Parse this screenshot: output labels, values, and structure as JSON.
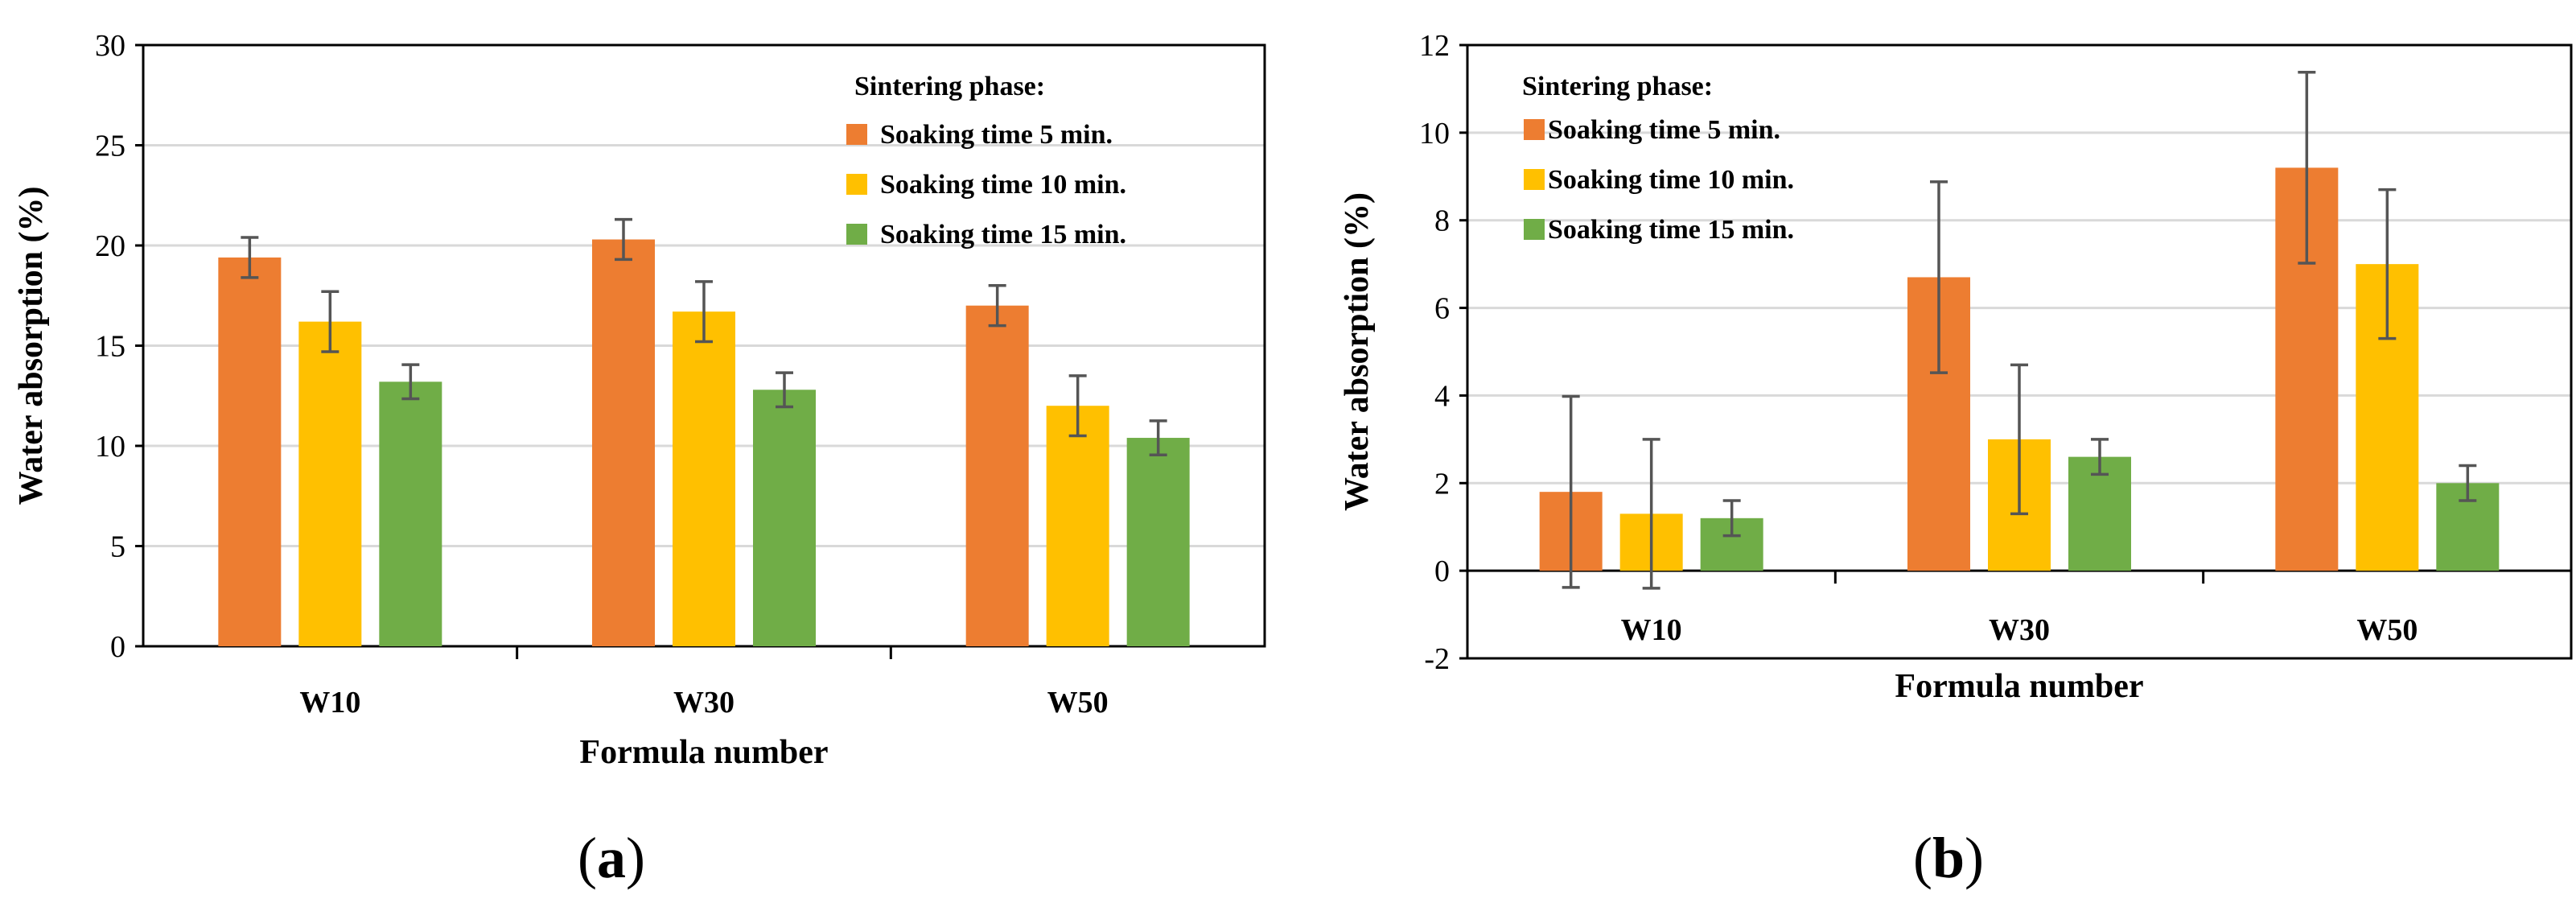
{
  "chart_data": [
    {
      "type": "bar",
      "panel_label": "(a)",
      "xlabel": "Formula number",
      "ylabel": "Water absorption (%)",
      "ylim": [
        0,
        30
      ],
      "yticks": [
        0,
        5,
        10,
        15,
        20,
        25,
        30
      ],
      "categories": [
        "W10",
        "W30",
        "W50"
      ],
      "legend_title": "Sintering phase:",
      "legend_position": "top-right",
      "series": [
        {
          "name": "Soaking time 5 min.",
          "color": "#ED7D31",
          "values": [
            19.4,
            20.3,
            17.0
          ],
          "errors": [
            1.0,
            1.0,
            1.0
          ]
        },
        {
          "name": "Soaking time 10 min.",
          "color": "#FFC000",
          "values": [
            16.2,
            16.7,
            12.0
          ],
          "errors": [
            1.5,
            1.5,
            1.5
          ]
        },
        {
          "name": "Soaking time 15 min.",
          "color": "#70AD47",
          "values": [
            13.2,
            12.8,
            10.4
          ],
          "errors": [
            0.85,
            0.85,
            0.85
          ]
        }
      ],
      "grid": true
    },
    {
      "type": "bar",
      "panel_label": "(b)",
      "xlabel": "Formula number",
      "ylabel": "Water absorption (%)",
      "ylim": [
        -2,
        12
      ],
      "yticks": [
        -2,
        0,
        2,
        4,
        6,
        8,
        10,
        12
      ],
      "categories": [
        "W10",
        "W30",
        "W50"
      ],
      "legend_title": "Sintering phase:",
      "legend_position": "top-left",
      "series": [
        {
          "name": "Soaking time 5 min.",
          "color": "#ED7D31",
          "values": [
            1.8,
            6.7,
            9.2
          ],
          "errors": [
            2.18,
            2.18,
            2.18
          ]
        },
        {
          "name": "Soaking time 10 min.",
          "color": "#FFC000",
          "values": [
            1.3,
            3.0,
            7.0
          ],
          "errors": [
            1.7,
            1.7,
            1.7
          ]
        },
        {
          "name": "Soaking time 15 min.",
          "color": "#70AD47",
          "values": [
            1.2,
            2.6,
            2.0
          ],
          "errors": [
            0.4,
            0.4,
            0.4
          ]
        }
      ],
      "grid": true
    }
  ]
}
